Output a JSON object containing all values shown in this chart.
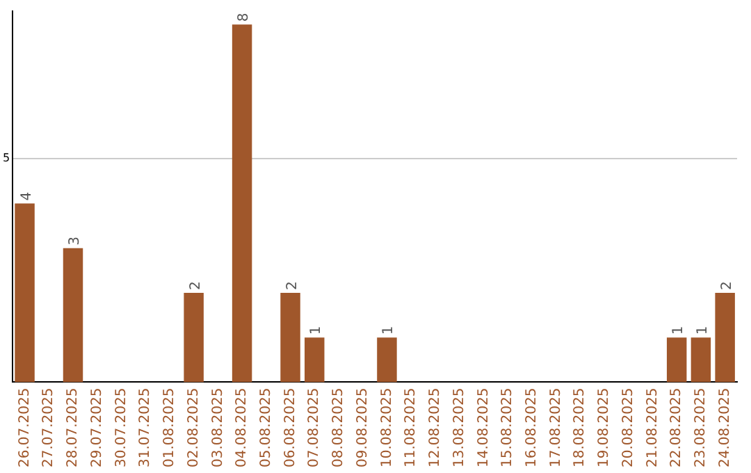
{
  "chart_data": {
    "type": "bar",
    "categories": [
      "26.07.2025",
      "27.07.2025",
      "28.07.2025",
      "29.07.2025",
      "30.07.2025",
      "31.07.2025",
      "01.08.2025",
      "02.08.2025",
      "03.08.2025",
      "04.08.2025",
      "05.08.2025",
      "06.08.2025",
      "07.08.2025",
      "08.08.2025",
      "09.08.2025",
      "10.08.2025",
      "11.08.2025",
      "12.08.2025",
      "13.08.2025",
      "14.08.2025",
      "15.08.2025",
      "16.08.2025",
      "17.08.2025",
      "18.08.2025",
      "19.08.2025",
      "20.08.2025",
      "21.08.2025",
      "22.08.2025",
      "23.08.2025",
      "24.08.2025"
    ],
    "values": [
      4,
      null,
      3,
      null,
      null,
      null,
      null,
      2,
      null,
      8,
      null,
      2,
      1,
      null,
      null,
      1,
      null,
      null,
      null,
      null,
      null,
      null,
      null,
      null,
      null,
      null,
      null,
      1,
      1,
      2
    ],
    "color": "#a0572b",
    "ylim": [
      0,
      8.3
    ],
    "yticks": [
      5
    ],
    "grid": "y",
    "data_labels": true,
    "legend": false
  }
}
